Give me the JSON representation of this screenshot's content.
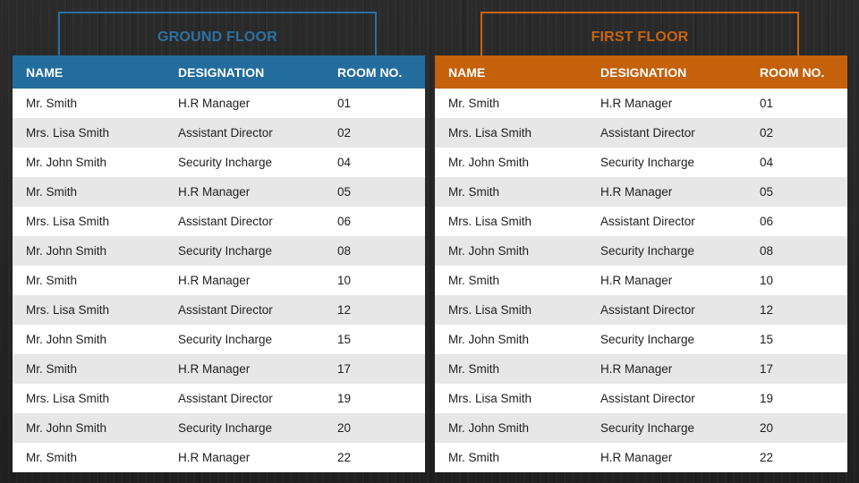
{
  "columns": {
    "name": "NAME",
    "designation": "DESIGNATION",
    "room": "ROOM NO."
  },
  "colors": {
    "ground_accent": "#236d9e",
    "first_accent": "#c4610a",
    "row_alt": "#e7e7e7",
    "background": "#262626"
  },
  "ground_floor": {
    "title": "GROUND FLOOR",
    "rows": [
      {
        "name": "Mr. Smith",
        "designation": "H.R Manager",
        "room": "01"
      },
      {
        "name": "Mrs. Lisa Smith",
        "designation": "Assistant Director",
        "room": "02"
      },
      {
        "name": "Mr. John Smith",
        "designation": "Security Incharge",
        "room": "04"
      },
      {
        "name": "Mr. Smith",
        "designation": "H.R Manager",
        "room": "05"
      },
      {
        "name": "Mrs. Lisa Smith",
        "designation": "Assistant Director",
        "room": "06"
      },
      {
        "name": "Mr. John Smith",
        "designation": "Security Incharge",
        "room": "08"
      },
      {
        "name": "Mr. Smith",
        "designation": "H.R Manager",
        "room": "10"
      },
      {
        "name": "Mrs. Lisa Smith",
        "designation": "Assistant Director",
        "room": "12"
      },
      {
        "name": "Mr. John Smith",
        "designation": "Security Incharge",
        "room": "15"
      },
      {
        "name": "Mr. Smith",
        "designation": "H.R Manager",
        "room": "17"
      },
      {
        "name": "Mrs. Lisa Smith",
        "designation": "Assistant Director",
        "room": "19"
      },
      {
        "name": "Mr. John Smith",
        "designation": "Security Incharge",
        "room": "20"
      },
      {
        "name": "Mr. Smith",
        "designation": "H.R Manager",
        "room": "22"
      }
    ]
  },
  "first_floor": {
    "title": "FIRST FLOOR",
    "rows": [
      {
        "name": "Mr. Smith",
        "designation": "H.R Manager",
        "room": "01"
      },
      {
        "name": "Mrs. Lisa Smith",
        "designation": "Assistant Director",
        "room": "02"
      },
      {
        "name": "Mr. John Smith",
        "designation": "Security Incharge",
        "room": "04"
      },
      {
        "name": "Mr. Smith",
        "designation": "H.R Manager",
        "room": "05"
      },
      {
        "name": "Mrs. Lisa Smith",
        "designation": "Assistant Director",
        "room": "06"
      },
      {
        "name": "Mr. John Smith",
        "designation": "Security Incharge",
        "room": "08"
      },
      {
        "name": "Mr. Smith",
        "designation": "H.R Manager",
        "room": "10"
      },
      {
        "name": "Mrs. Lisa Smith",
        "designation": "Assistant Director",
        "room": "12"
      },
      {
        "name": "Mr. John Smith",
        "designation": "Security Incharge",
        "room": "15"
      },
      {
        "name": "Mr. Smith",
        "designation": "H.R Manager",
        "room": "17"
      },
      {
        "name": "Mrs. Lisa Smith",
        "designation": "Assistant Director",
        "room": "19"
      },
      {
        "name": "Mr. John Smith",
        "designation": "Security Incharge",
        "room": "20"
      },
      {
        "name": "Mr. Smith",
        "designation": "H.R Manager",
        "room": "22"
      }
    ]
  }
}
